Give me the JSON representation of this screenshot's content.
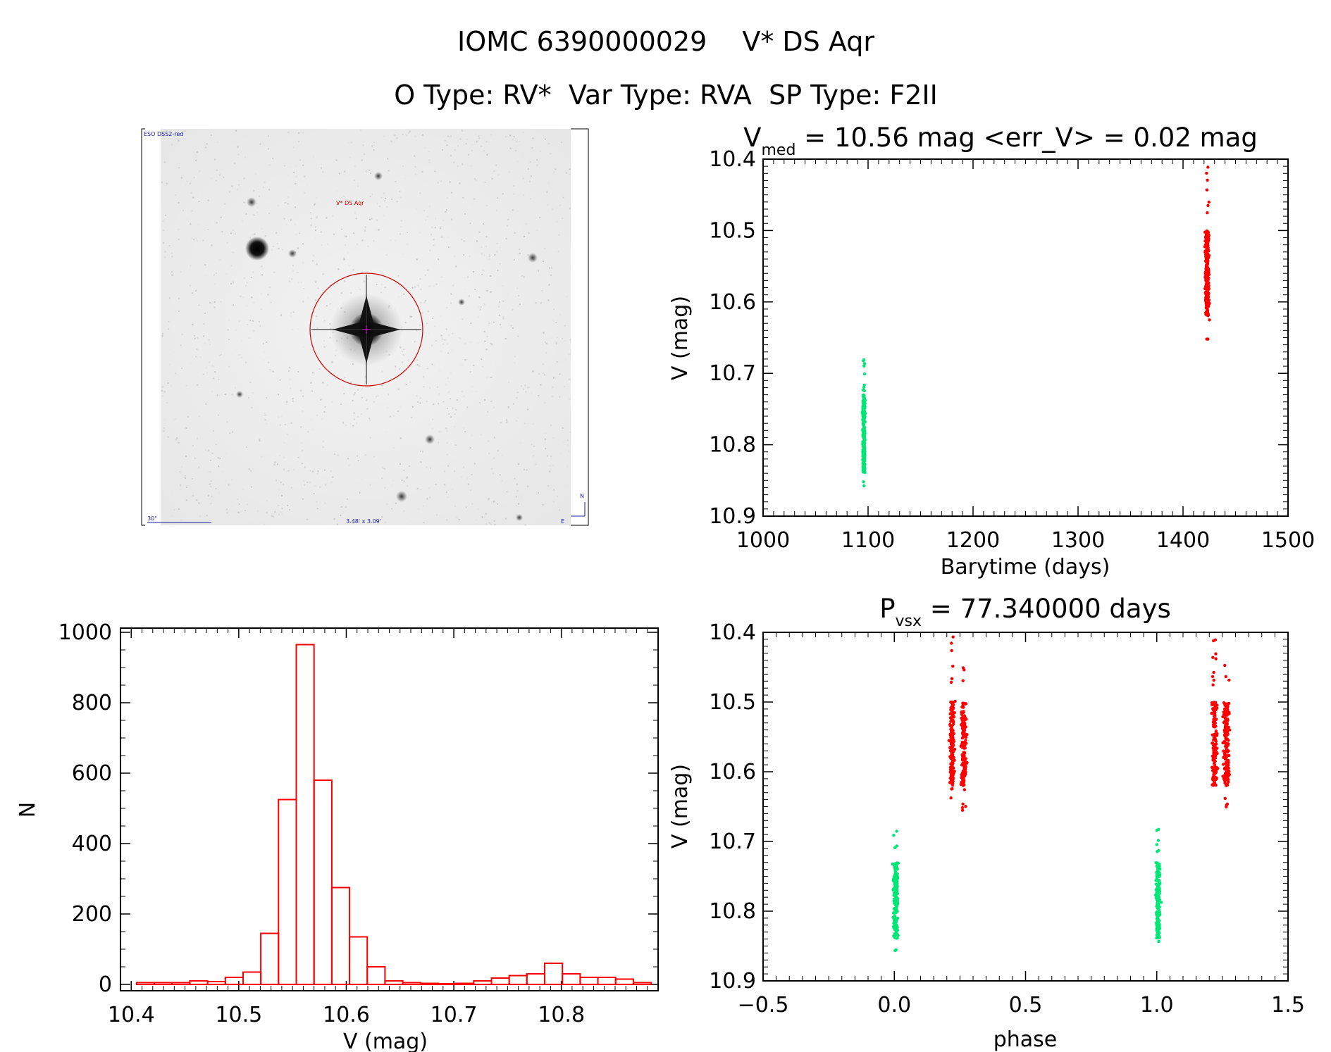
{
  "header": {
    "line1_id": "IOMC 6390000029",
    "line1_name": "V* DS Aqr",
    "line2": "O Type: RV*  Var Type: RVA  SP Type: F2II"
  },
  "colors": {
    "axes": "#000000",
    "histogram": "#ff0000",
    "series_bright": "#ff0000",
    "series_faint": "#00e676",
    "finder_marker": "#cc0000",
    "finder_labels": "#1a1aa0"
  },
  "finder_chart": {
    "survey_label": "ESO DSS2-red",
    "object_label": "V* DS Aqr",
    "scale_label": "30\"",
    "fov_label": "3.48' x 3.09'",
    "north_label": "N",
    "east_label": "E"
  },
  "chart_data": [
    {
      "type": "scatter",
      "id": "light_curve",
      "title_main": "V",
      "title_sub": "med",
      "title_rest": " = 10.56 mag <err_V> = 0.02 mag",
      "xlabel": "Barytime (days)",
      "ylabel": "V (mag)",
      "xlim": [
        1000,
        1500
      ],
      "ylim": [
        10.9,
        10.4
      ],
      "y_inverted": true,
      "xticks": [
        1000,
        1100,
        1200,
        1300,
        1400,
        1500
      ],
      "yticks": [
        10.4,
        10.5,
        10.6,
        10.7,
        10.8,
        10.9
      ],
      "series": [
        {
          "color_key": "series_faint",
          "x_center": 1096,
          "x_spread": 2,
          "y_min": 10.68,
          "y_max": 10.86,
          "y_core_min": 10.73,
          "y_core_max": 10.84
        },
        {
          "color_key": "series_bright",
          "x_center": 1423,
          "x_spread": 3,
          "y_min": 10.405,
          "y_max": 10.66,
          "y_core_min": 10.5,
          "y_core_max": 10.62
        }
      ]
    },
    {
      "type": "bar",
      "id": "histogram",
      "xlabel": "V (mag)",
      "ylabel": "N",
      "xlim": [
        10.39,
        10.89
      ],
      "ylim": [
        0,
        1000
      ],
      "xticks": [
        10.4,
        10.5,
        10.6,
        10.7,
        10.8
      ],
      "yticks": [
        0,
        200,
        400,
        600,
        800,
        1000
      ],
      "bin_start": 10.405,
      "bin_width": 0.0165,
      "values": [
        5,
        5,
        5,
        10,
        8,
        20,
        35,
        145,
        525,
        965,
        580,
        275,
        135,
        50,
        10,
        5,
        3,
        2,
        3,
        10,
        18,
        25,
        30,
        60,
        30,
        20,
        20,
        15,
        5
      ]
    },
    {
      "type": "scatter",
      "id": "phased_curve",
      "title_main": "P",
      "title_sub": "vsx",
      "title_rest": " = 77.340000 days",
      "xlabel": "phase",
      "ylabel": "V (mag)",
      "xlim": [
        -0.5,
        1.5
      ],
      "ylim": [
        10.9,
        10.4
      ],
      "y_inverted": true,
      "period_days": 77.34,
      "xticks": [
        -0.5,
        0.0,
        0.5,
        1.0,
        1.5
      ],
      "yticks": [
        10.4,
        10.5,
        10.6,
        10.7,
        10.8,
        10.9
      ],
      "series": [
        {
          "color_key": "series_faint",
          "x_center": 0.005,
          "x_spread": 0.015,
          "y_min": 10.68,
          "y_max": 10.86,
          "y_core_min": 10.73,
          "y_core_max": 10.84
        },
        {
          "color_key": "series_faint",
          "x_center": 1.005,
          "x_spread": 0.015,
          "y_min": 10.68,
          "y_max": 10.86,
          "y_core_min": 10.73,
          "y_core_max": 10.84
        },
        {
          "color_key": "series_bright",
          "x_center": 0.22,
          "x_spread": 0.015,
          "y_min": 10.405,
          "y_max": 10.64,
          "y_core_min": 10.5,
          "y_core_max": 10.62
        },
        {
          "color_key": "series_bright",
          "x_center": 0.265,
          "x_spread": 0.02,
          "y_min": 10.44,
          "y_max": 10.66,
          "y_core_min": 10.5,
          "y_core_max": 10.62
        },
        {
          "color_key": "series_bright",
          "x_center": 1.22,
          "x_spread": 0.015,
          "y_min": 10.405,
          "y_max": 10.64,
          "y_core_min": 10.5,
          "y_core_max": 10.62
        },
        {
          "color_key": "series_bright",
          "x_center": 1.265,
          "x_spread": 0.02,
          "y_min": 10.44,
          "y_max": 10.66,
          "y_core_min": 10.5,
          "y_core_max": 10.62
        }
      ]
    }
  ]
}
